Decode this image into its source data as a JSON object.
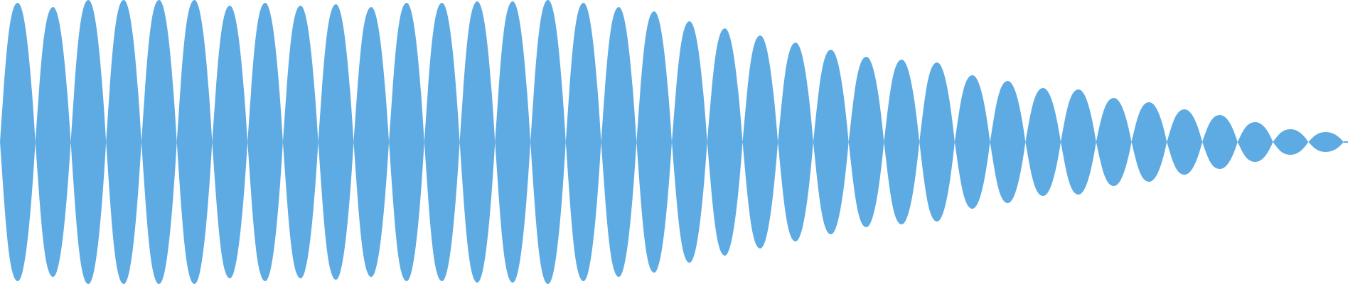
{
  "waveform": {
    "color": "#5dabe2",
    "background": "#ffffff",
    "lobes": [
      {
        "amplitude": 0.98
      },
      {
        "amplitude": 0.95
      },
      {
        "amplitude": 1.0
      },
      {
        "amplitude": 1.0
      },
      {
        "amplitude": 1.0
      },
      {
        "amplitude": 1.0
      },
      {
        "amplitude": 0.96
      },
      {
        "amplitude": 0.98
      },
      {
        "amplitude": 0.96
      },
      {
        "amplitude": 0.97
      },
      {
        "amplitude": 0.95
      },
      {
        "amplitude": 0.98
      },
      {
        "amplitude": 0.98
      },
      {
        "amplitude": 0.99
      },
      {
        "amplitude": 0.99
      },
      {
        "amplitude": 1.0
      },
      {
        "amplitude": 0.98
      },
      {
        "amplitude": 0.95
      },
      {
        "amplitude": 0.92
      },
      {
        "amplitude": 0.85
      },
      {
        "amplitude": 0.8
      },
      {
        "amplitude": 0.75
      },
      {
        "amplitude": 0.7
      },
      {
        "amplitude": 0.65
      },
      {
        "amplitude": 0.6
      },
      {
        "amplitude": 0.58
      },
      {
        "amplitude": 0.56
      },
      {
        "amplitude": 0.47
      },
      {
        "amplitude": 0.43
      },
      {
        "amplitude": 0.38
      },
      {
        "amplitude": 0.37
      },
      {
        "amplitude": 0.31
      },
      {
        "amplitude": 0.28
      },
      {
        "amplitude": 0.23
      },
      {
        "amplitude": 0.19
      },
      {
        "amplitude": 0.14
      },
      {
        "amplitude": 0.09
      },
      {
        "amplitude": 0.07
      }
    ]
  }
}
